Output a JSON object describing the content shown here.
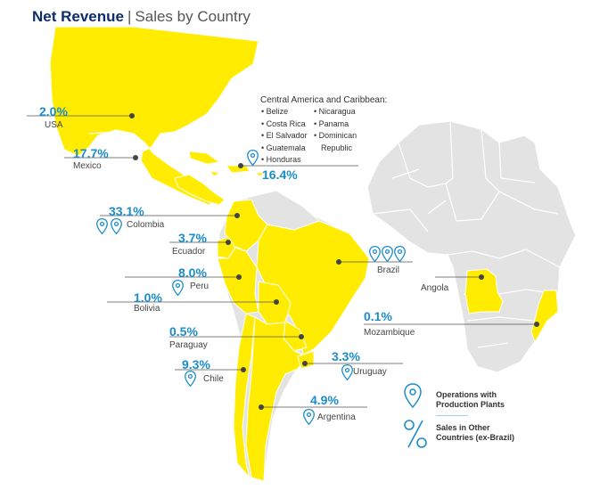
{
  "title": {
    "bold": "Net Revenue",
    "separator": "|",
    "rest": "Sales by Country"
  },
  "countries": [
    {
      "id": "usa",
      "name": "USA",
      "pct": "2.0%"
    },
    {
      "id": "mexico",
      "name": "Mexico",
      "pct": "17.7%"
    },
    {
      "id": "central-america",
      "name": "",
      "pct": "16.4%"
    },
    {
      "id": "colombia",
      "name": "Colombia",
      "pct": "33.1%"
    },
    {
      "id": "ecuador",
      "name": "Ecuador",
      "pct": "3.7%"
    },
    {
      "id": "peru",
      "name": "Peru",
      "pct": "8.0%"
    },
    {
      "id": "bolivia",
      "name": "Bolivia",
      "pct": "1.0%"
    },
    {
      "id": "paraguay",
      "name": "Paraguay",
      "pct": "0.5%"
    },
    {
      "id": "chile",
      "name": "Chile",
      "pct": "9.3%"
    },
    {
      "id": "uruguay",
      "name": "Uruguay",
      "pct": "3.3%"
    },
    {
      "id": "argentina",
      "name": "Argentina",
      "pct": "4.9%"
    },
    {
      "id": "brazil",
      "name": "Brazil",
      "pct": ""
    },
    {
      "id": "angola",
      "name": "Angola",
      "pct": ""
    },
    {
      "id": "mozambique",
      "name": "Mozambique",
      "pct": "0.1%"
    }
  ],
  "central_america": {
    "heading": "Central America and Caribbean:",
    "col1": [
      "• Belize",
      "• Costa Rica",
      "• El Salvador",
      "• Guatemala",
      "• Honduras"
    ],
    "col2": [
      "• Nicaragua",
      "• Panama",
      "• Dominican",
      "Republic"
    ]
  },
  "legend": {
    "plants": [
      "Operations with",
      "Production Plants"
    ],
    "sales": [
      "Sales in Other",
      "Countries (ex-Brazil)"
    ]
  },
  "colors": {
    "highlight": "#ffec00",
    "land": "#e3e3e3",
    "border": "#ffffff",
    "pct": "#1a8ccc",
    "title": "#0d2d6c",
    "leader": "#555555",
    "pin": "#1a8ccc"
  },
  "icons": [
    "location-pin-icon",
    "percent-icon"
  ]
}
